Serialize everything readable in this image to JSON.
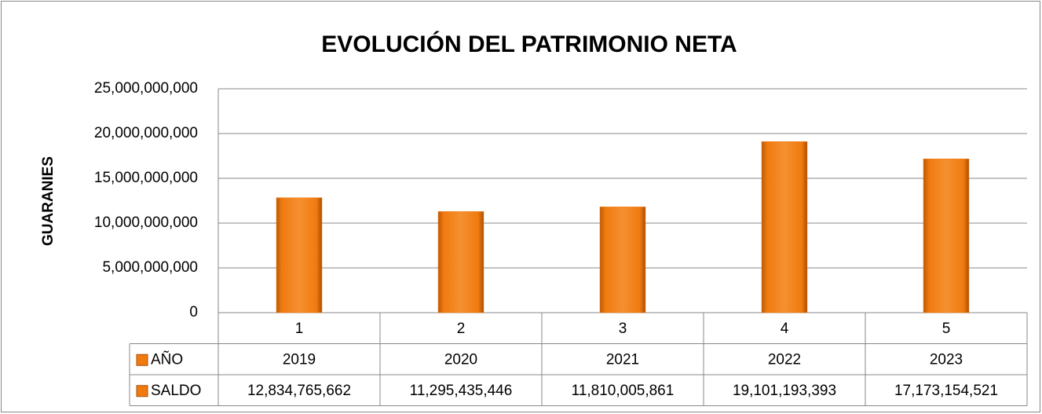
{
  "chart_data": {
    "type": "bar",
    "title": "EVOLUCIÓN DEL PATRIMONIO NETA",
    "y_label": "GUARANIES",
    "categories": [
      "1",
      "2",
      "3",
      "4",
      "5"
    ],
    "series": [
      {
        "name": "SALDO",
        "color": "#f07a10",
        "values": [
          12834765662,
          11295435446,
          11810005861,
          19101193393,
          17173154521
        ],
        "value_labels": [
          "12,834,765,662",
          "11,295,435,446",
          "11,810,005,861",
          "19,101,193,393",
          "17,173,154,521"
        ]
      }
    ],
    "table_rows": [
      {
        "name": "AÑO",
        "color": "#f07a10",
        "values": [
          2019,
          2020,
          2021,
          2022,
          2023
        ]
      }
    ],
    "ylim": [
      0,
      25000000000
    ],
    "yticks": [
      0,
      {
        "value": 5000000000,
        "label": "5,000,000,000"
      },
      {
        "value": 10000000000,
        "label": "10,000,000,000"
      },
      {
        "value": 15000000000,
        "label": "15,000,000,000"
      },
      {
        "value": 20000000000,
        "label": "20,000,000,000"
      },
      {
        "value": 25000000000,
        "label": "25,000,000,000"
      }
    ],
    "grid": true
  }
}
